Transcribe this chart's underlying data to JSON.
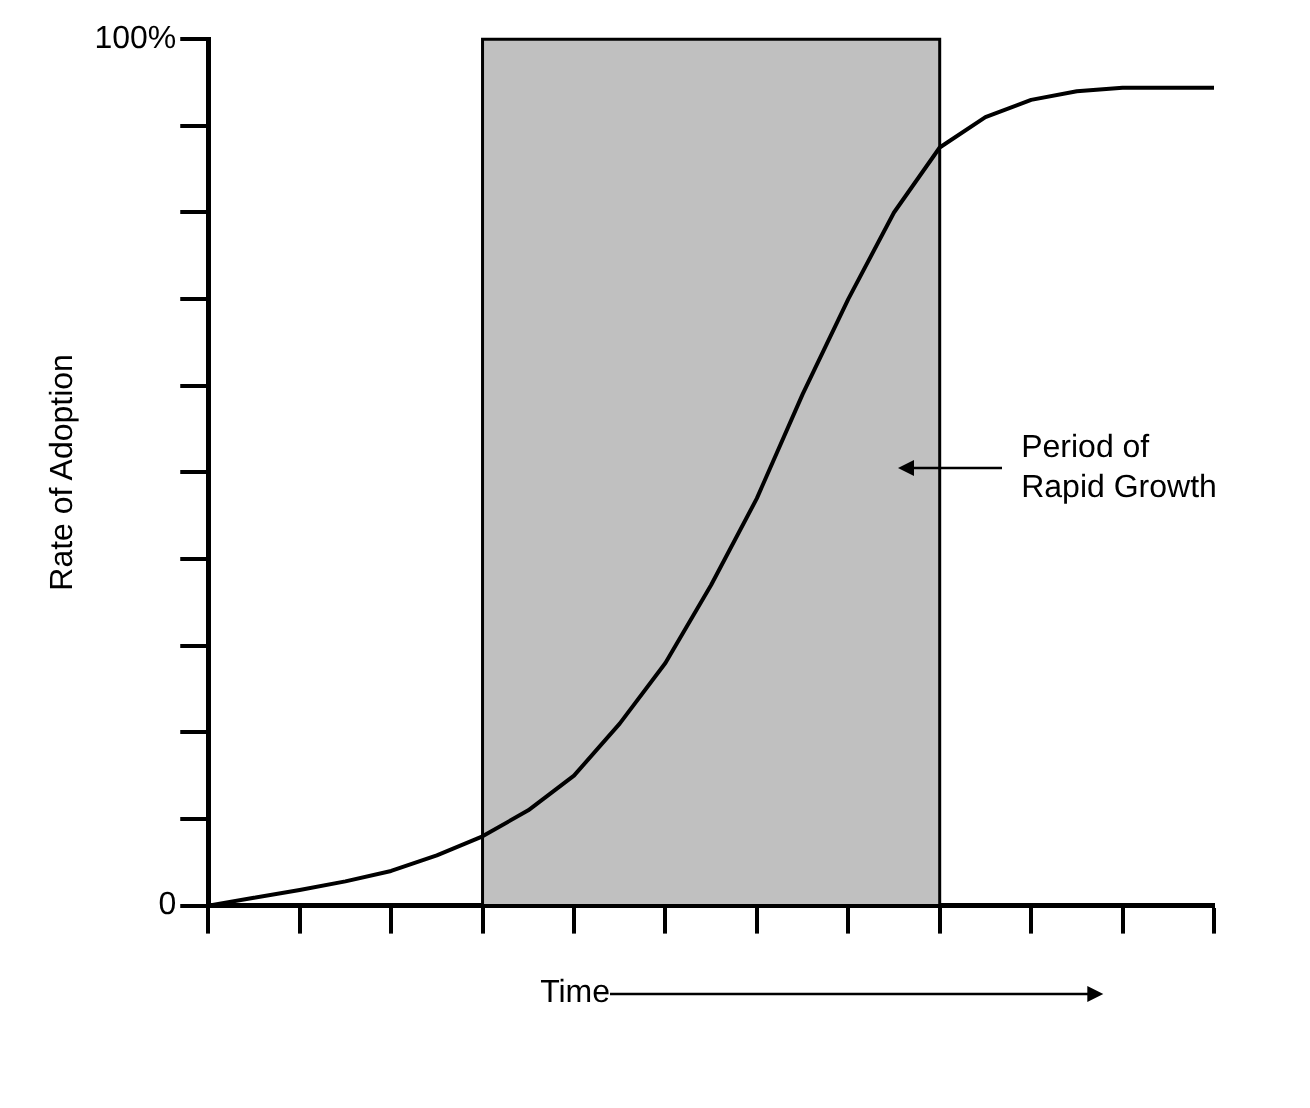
{
  "chart_data": {
    "type": "line",
    "xlabel": "Time",
    "ylabel": "Rate of Adoption",
    "categories": [
      null,
      null,
      null,
      null,
      null,
      null,
      null,
      null,
      null,
      null,
      null,
      null,
      null,
      null,
      null,
      null,
      null,
      null,
      null,
      null,
      null,
      null,
      null
    ],
    "series": [
      {
        "color": "#000000",
        "values": [
          0,
          0.9,
          1.8,
          2.8,
          4,
          5.8,
          8,
          11,
          15,
          21,
          28,
          37,
          47,
          59,
          70,
          80,
          87.5,
          91,
          93,
          94,
          94.4,
          94.4,
          94.4
        ]
      }
    ],
    "ylim": [
      0,
      100
    ],
    "yticks": [
      {
        "value": 0,
        "label": "0"
      },
      {
        "value": 10,
        "label": null
      },
      {
        "value": 20,
        "label": null
      },
      {
        "value": 30,
        "label": null
      },
      {
        "value": 40,
        "label": null
      },
      {
        "value": 50,
        "label": null
      },
      {
        "value": 60,
        "label": null
      },
      {
        "value": 70,
        "label": null
      },
      {
        "value": 80,
        "label": null
      },
      {
        "value": 90,
        "label": null
      },
      {
        "value": 100,
        "label": "100%"
      }
    ],
    "annotations": [
      "Period of Rapid Growth"
    ],
    "grid": false,
    "legend": false,
    "marker": "none",
    "line_style": "solid"
  }
}
